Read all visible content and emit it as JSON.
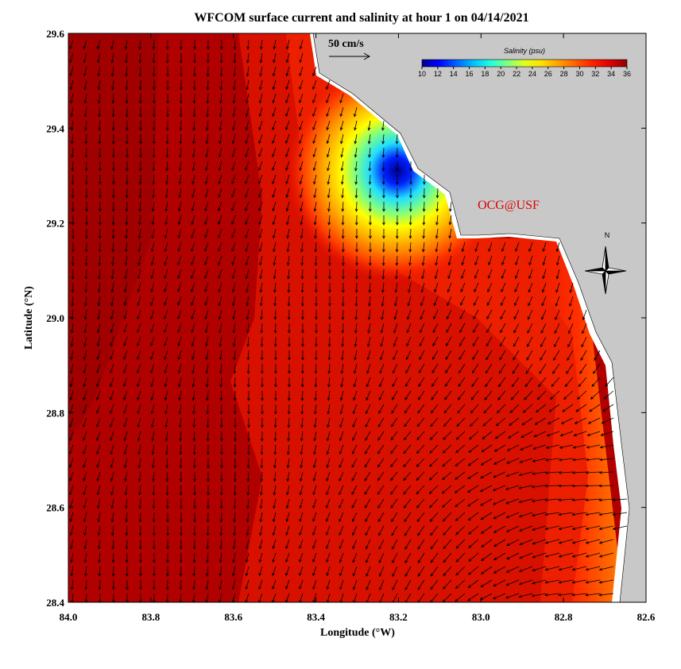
{
  "title": "WFCOM surface current and salinity at hour 1 on 04/14/2021",
  "x_axis": {
    "label": "Longitude (°W)",
    "lim": [
      84.0,
      82.6
    ],
    "ticks": [
      {
        "value": 84.0,
        "label": "84.0"
      },
      83.8,
      83.6,
      83.4,
      83.2,
      {
        "value": 83.0,
        "label": "83.0"
      },
      82.8,
      82.6
    ]
  },
  "y_axis": {
    "label": "Latitude (°N)",
    "lim": [
      28.4,
      29.6
    ],
    "ticks": [
      28.4,
      28.6,
      28.8,
      {
        "value": 29.0,
        "label": "29.0"
      },
      29.2,
      29.4,
      29.6
    ]
  },
  "colorbar": {
    "title": "Salinity (psu)",
    "lim": [
      10,
      36
    ],
    "ticks": [
      10,
      12,
      14,
      16,
      18,
      20,
      22,
      24,
      26,
      28,
      30,
      32,
      34,
      36
    ],
    "colors": [
      "#00008f",
      "#0000ff",
      "#0060ff",
      "#00bfff",
      "#20ffdf",
      "#80ff80",
      "#dfff20",
      "#ffdf00",
      "#ff9f00",
      "#ff6000",
      "#ff2000",
      "#df0000",
      "#8f0000"
    ]
  },
  "scale_label": "50 cm/s",
  "credit": "OCG@USF",
  "north_label": "N"
}
